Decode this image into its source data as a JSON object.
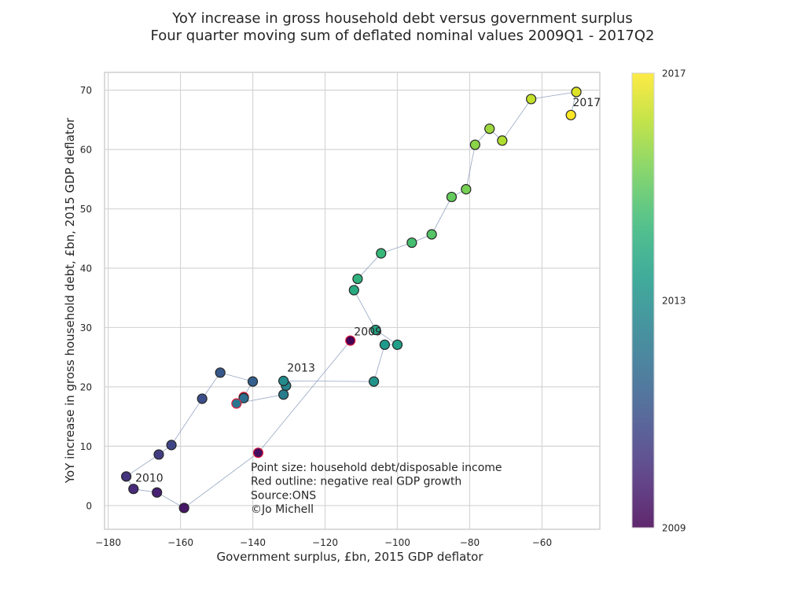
{
  "chart_data": {
    "type": "scatter",
    "title": "YoY increase in gross household debt versus government surplus",
    "subtitle": "Four quarter moving sum of deflated nominal values 2009Q1 - 2017Q2",
    "xlabel": "Government surplus, £bn, 2015 GDP deflator",
    "ylabel": "YoY increase in gross household debt, £bn, 2015 GDP deflator",
    "xlim": [
      -181,
      -44
    ],
    "ylim": [
      -4,
      73
    ],
    "xticks": [
      -180,
      -160,
      -140,
      -120,
      -100,
      -80,
      -60
    ],
    "yticks": [
      0,
      10,
      20,
      30,
      40,
      50,
      60,
      70
    ],
    "grid": true,
    "connect_points": true,
    "line_color": "#7b8fb4",
    "negative_gdp_outline_color": "#e0203c",
    "colormap": "viridis",
    "colorbar": {
      "labels": [
        {
          "text": "2009",
          "value": 0
        },
        {
          "text": "2013",
          "value": 0.5
        },
        {
          "text": "2017",
          "value": 1
        }
      ]
    },
    "points": [
      {
        "x": -113,
        "y": 27.8,
        "neg_gdp": true,
        "t": 0.0
      },
      {
        "x": -138.5,
        "y": 8.9,
        "neg_gdp": true,
        "t": 0.03
      },
      {
        "x": -159,
        "y": -0.4,
        "neg_gdp": false,
        "t": 0.06
      },
      {
        "x": -166.5,
        "y": 2.2,
        "neg_gdp": false,
        "t": 0.09
      },
      {
        "x": -173,
        "y": 2.8,
        "neg_gdp": false,
        "t": 0.12
      },
      {
        "x": -175,
        "y": 4.9,
        "neg_gdp": false,
        "t": 0.15
      },
      {
        "x": -166,
        "y": 8.6,
        "neg_gdp": false,
        "t": 0.18
      },
      {
        "x": -162.5,
        "y": 10.2,
        "neg_gdp": false,
        "t": 0.21
      },
      {
        "x": -154,
        "y": 18.0,
        "neg_gdp": false,
        "t": 0.24
      },
      {
        "x": -149,
        "y": 22.4,
        "neg_gdp": false,
        "t": 0.27
      },
      {
        "x": -140,
        "y": 20.9,
        "neg_gdp": false,
        "t": 0.3
      },
      {
        "x": -142.5,
        "y": 18.3,
        "neg_gdp": true,
        "t": 0.33
      },
      {
        "x": -142.5,
        "y": 18.1,
        "neg_gdp": false,
        "t": 0.36
      },
      {
        "x": -144.5,
        "y": 17.2,
        "neg_gdp": true,
        "t": 0.39
      },
      {
        "x": -131.5,
        "y": 18.7,
        "neg_gdp": false,
        "t": 0.42
      },
      {
        "x": -130.8,
        "y": 20.2,
        "neg_gdp": false,
        "t": 0.45
      },
      {
        "x": -131.5,
        "y": 21.0,
        "neg_gdp": false,
        "t": 0.48
      },
      {
        "x": -106.5,
        "y": 20.9,
        "neg_gdp": false,
        "t": 0.51
      },
      {
        "x": -103.5,
        "y": 27.1,
        "neg_gdp": false,
        "t": 0.54
      },
      {
        "x": -100,
        "y": 27.1,
        "neg_gdp": false,
        "t": 0.56
      },
      {
        "x": -106,
        "y": 29.6,
        "neg_gdp": false,
        "t": 0.58
      },
      {
        "x": -112,
        "y": 36.3,
        "neg_gdp": false,
        "t": 0.61
      },
      {
        "x": -111,
        "y": 38.2,
        "neg_gdp": false,
        "t": 0.64
      },
      {
        "x": -104.5,
        "y": 42.5,
        "neg_gdp": false,
        "t": 0.67
      },
      {
        "x": -96,
        "y": 44.3,
        "neg_gdp": false,
        "t": 0.7
      },
      {
        "x": -90.5,
        "y": 45.7,
        "neg_gdp": false,
        "t": 0.73
      },
      {
        "x": -85,
        "y": 52.0,
        "neg_gdp": false,
        "t": 0.76
      },
      {
        "x": -81,
        "y": 53.3,
        "neg_gdp": false,
        "t": 0.79
      },
      {
        "x": -78.5,
        "y": 60.8,
        "neg_gdp": false,
        "t": 0.82
      },
      {
        "x": -74.5,
        "y": 63.5,
        "neg_gdp": false,
        "t": 0.85
      },
      {
        "x": -71,
        "y": 61.5,
        "neg_gdp": false,
        "t": 0.88
      },
      {
        "x": -63,
        "y": 68.5,
        "neg_gdp": false,
        "t": 0.91
      },
      {
        "x": -50.5,
        "y": 69.7,
        "neg_gdp": false,
        "t": 0.95
      },
      {
        "x": -52,
        "y": 65.8,
        "neg_gdp": false,
        "t": 1.0
      }
    ],
    "year_annotations": [
      {
        "text": "2009",
        "x": -112,
        "y": 28.7
      },
      {
        "text": "2010",
        "x": -172.5,
        "y": 4.0
      },
      {
        "text": "2013",
        "x": -130.5,
        "y": 22.6
      },
      {
        "text": "2017",
        "x": -51.5,
        "y": 67.3
      }
    ],
    "annotation_lines": [
      "Point size: household debt/disposable income",
      "Red outline: negative real GDP growth",
      "Source:ONS",
      "©Jo Michell"
    ]
  }
}
